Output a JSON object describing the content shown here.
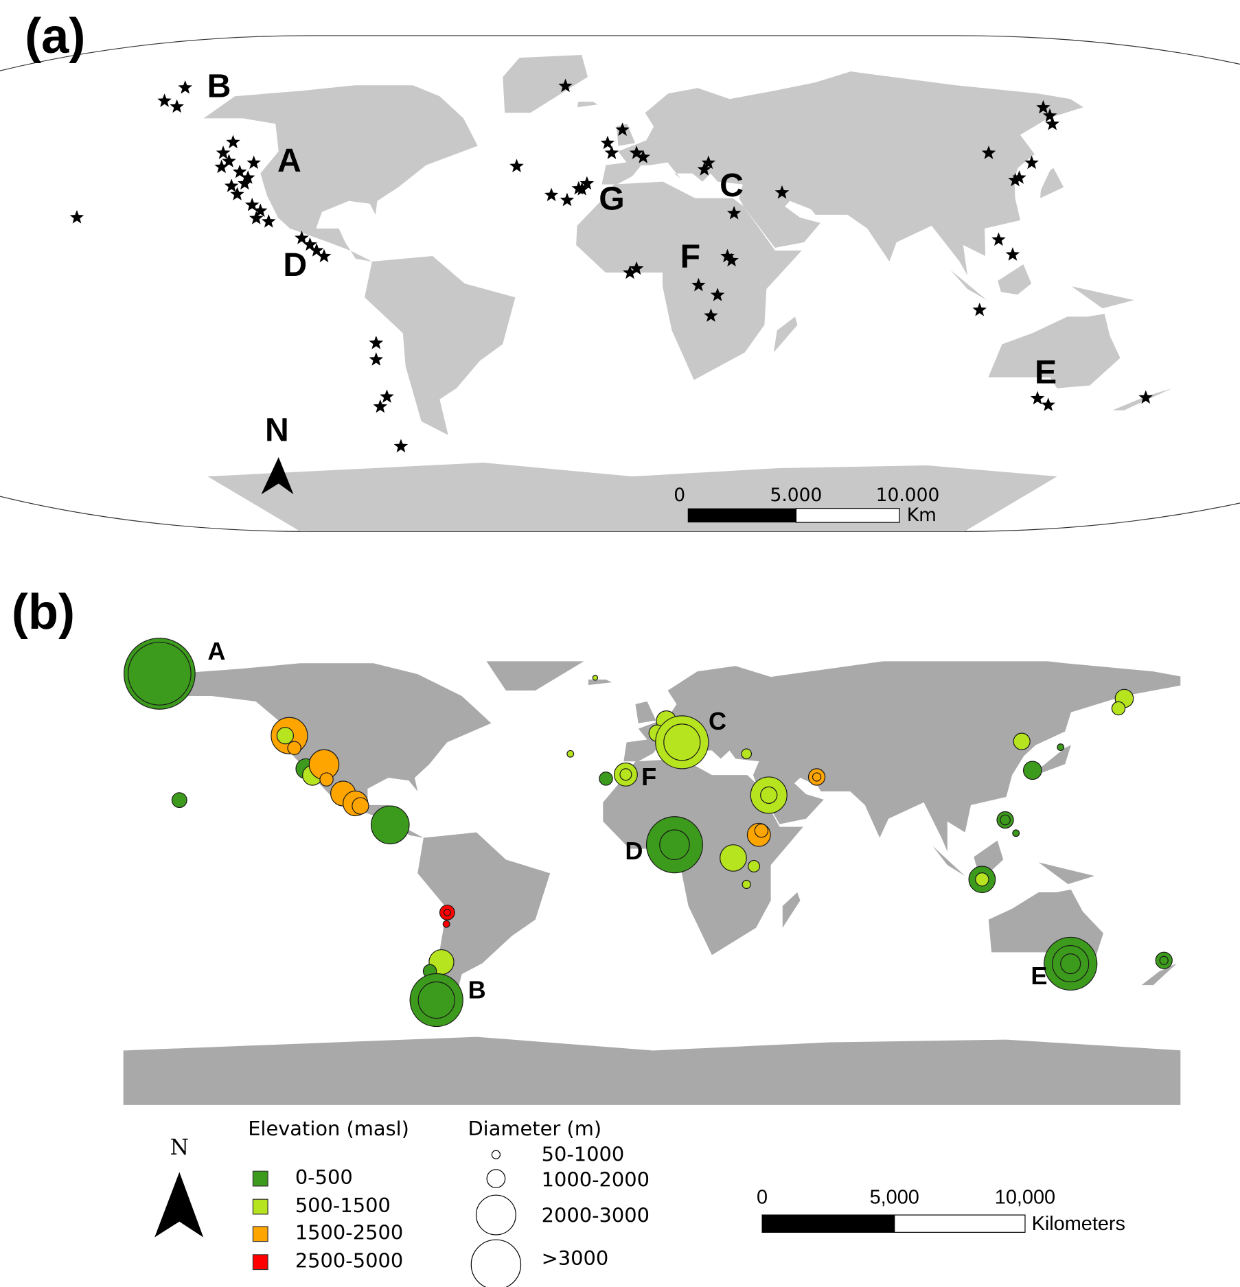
{
  "panels": [
    {
      "label": "(a)",
      "sites": [
        "B",
        "A",
        "C",
        "G",
        "F",
        "D",
        "E"
      ],
      "north": "N",
      "scale": {
        "ticks": [
          "0",
          "5.000",
          "10.000"
        ],
        "unit": "Km"
      }
    },
    {
      "label": "(b)",
      "sites": [
        "A",
        "C",
        "F",
        "D",
        "B",
        "E"
      ],
      "north": "N",
      "scale": {
        "ticks": [
          "0",
          "5,000",
          "10,000"
        ],
        "unit": "Kilometers"
      },
      "legend": {
        "elevation": {
          "title": "Elevation (masl)",
          "items": [
            {
              "label": "0-500",
              "color": "#3c9a1c"
            },
            {
              "label": "500-1500",
              "color": "#b6e41e"
            },
            {
              "label": "1500-2500",
              "color": "#ffa500"
            },
            {
              "label": "2500-5000",
              "color": "#ff0000"
            }
          ]
        },
        "diameter": {
          "title": "Diameter (m)",
          "items": [
            "50-1000",
            "1000-2000",
            "2000-3000",
            ">3000"
          ]
        }
      }
    }
  ]
}
